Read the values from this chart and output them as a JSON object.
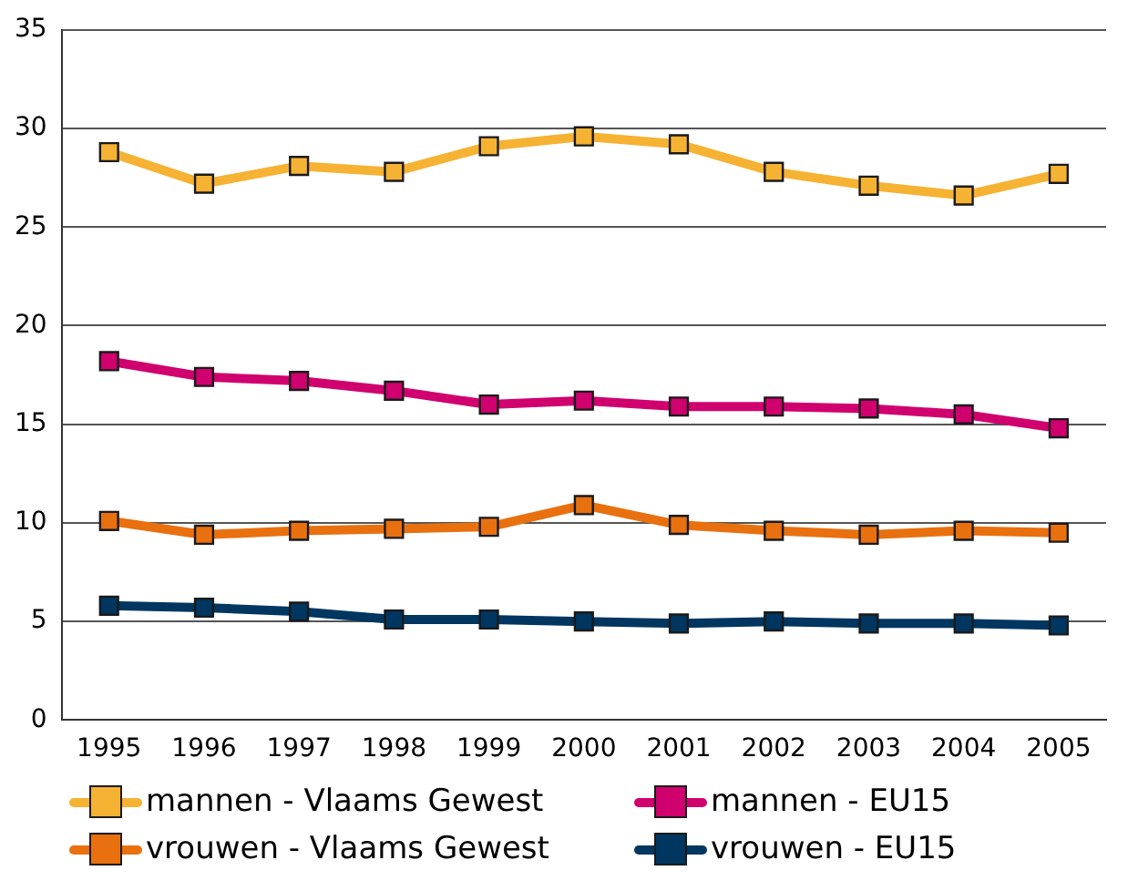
{
  "chart_data": {
    "type": "line",
    "categories": [
      "1995",
      "1996",
      "1997",
      "1998",
      "1999",
      "2000",
      "2001",
      "2002",
      "2003",
      "2004",
      "2005"
    ],
    "series": [
      {
        "name": "mannen - Vlaams Gewest",
        "color": "#f6b233",
        "values": [
          28.8,
          27.2,
          28.1,
          27.8,
          29.1,
          29.6,
          29.2,
          27.8,
          27.1,
          26.6,
          27.7
        ]
      },
      {
        "name": "mannen - EU15",
        "color": "#d0006f",
        "values": [
          18.2,
          17.4,
          17.2,
          16.7,
          16.0,
          16.2,
          15.9,
          15.9,
          15.8,
          15.5,
          14.8
        ]
      },
      {
        "name": "vrouwen - Vlaams Gewest",
        "color": "#e8700f",
        "values": [
          10.1,
          9.4,
          9.6,
          9.7,
          9.8,
          10.9,
          9.9,
          9.6,
          9.4,
          9.6,
          9.5
        ]
      },
      {
        "name": "vrouwen - EU15",
        "color": "#00365f",
        "values": [
          5.8,
          5.7,
          5.5,
          5.1,
          5.1,
          5.0,
          4.9,
          5.0,
          4.9,
          4.9,
          4.8
        ]
      }
    ],
    "ylim": [
      0,
      35
    ],
    "yticks": [
      0,
      5,
      10,
      15,
      20,
      25,
      30,
      35
    ],
    "grid": "y",
    "legend": "bottom",
    "marker": "square",
    "line_style": "solid"
  }
}
